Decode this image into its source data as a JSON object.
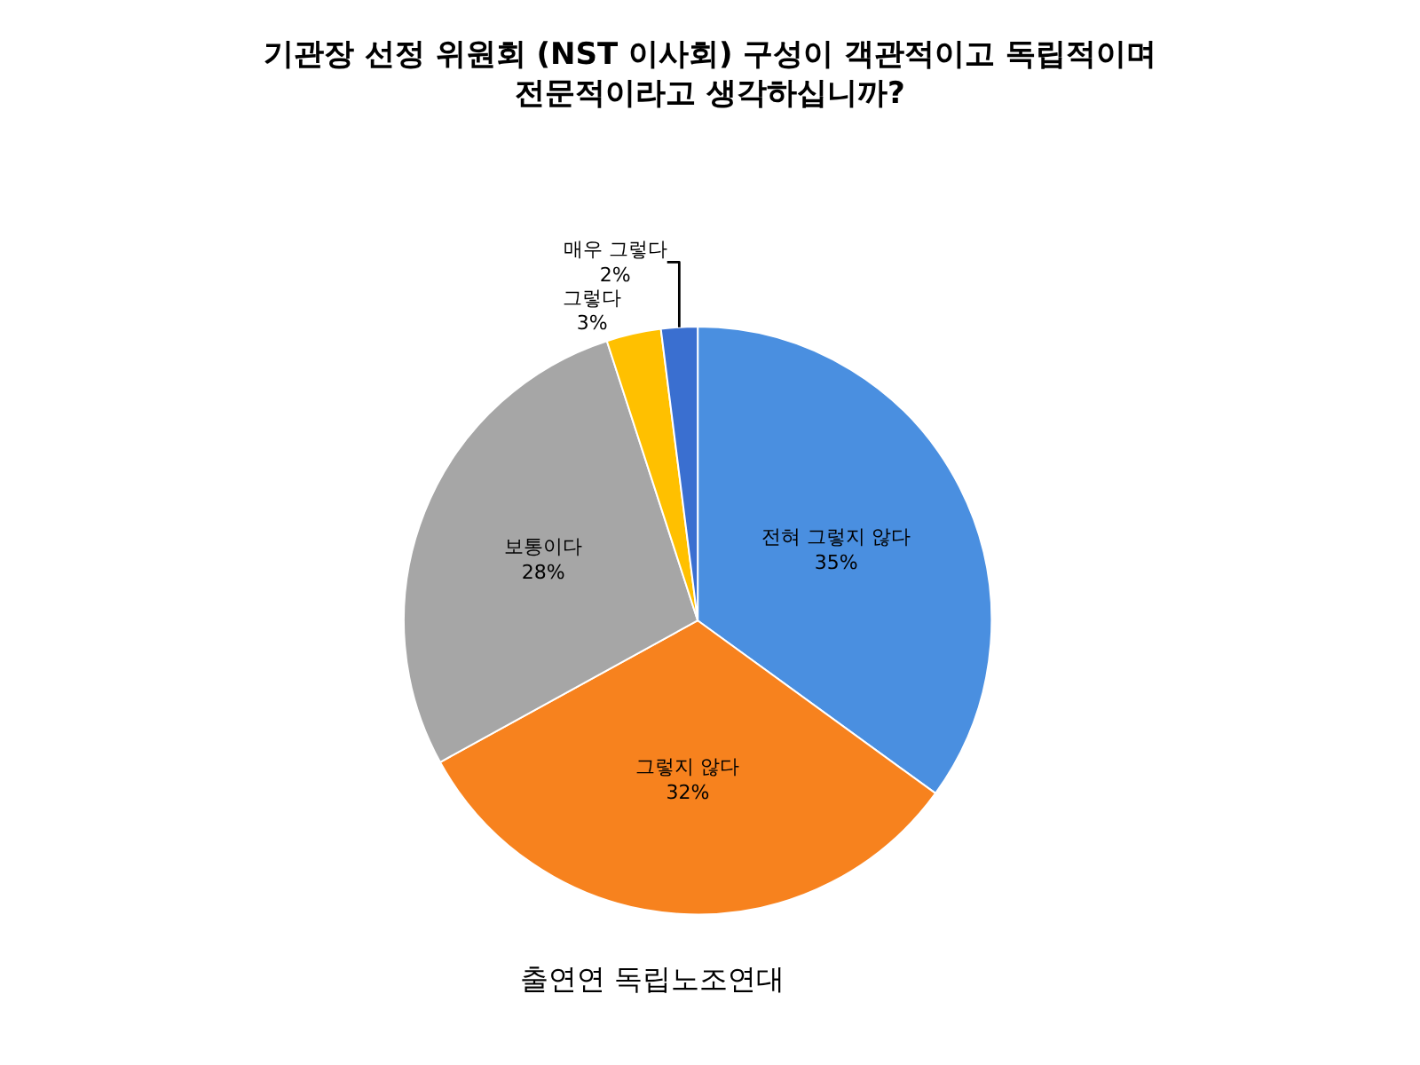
{
  "chart_data": {
    "type": "pie",
    "title": "기관장 선정 위원회 (NST 이사회) 구성이 객관적이고 독립적이며\n전문적이라고 생각하십니까?",
    "categories": [
      "전혀 그렇지 않다",
      "그렇지 않다",
      "보통이다",
      "그렇다",
      "매우 그렇다"
    ],
    "values": [
      35,
      32,
      28,
      3,
      2
    ],
    "value_labels": [
      "35%",
      "32%",
      "28%",
      "3%",
      "2%"
    ],
    "colors": [
      "#4a8fe0",
      "#f7821e",
      "#a6a6a6",
      "#ffc000",
      "#3a6fd0"
    ],
    "legend": false,
    "annotations": [
      "출연연 독립노조연대"
    ]
  }
}
